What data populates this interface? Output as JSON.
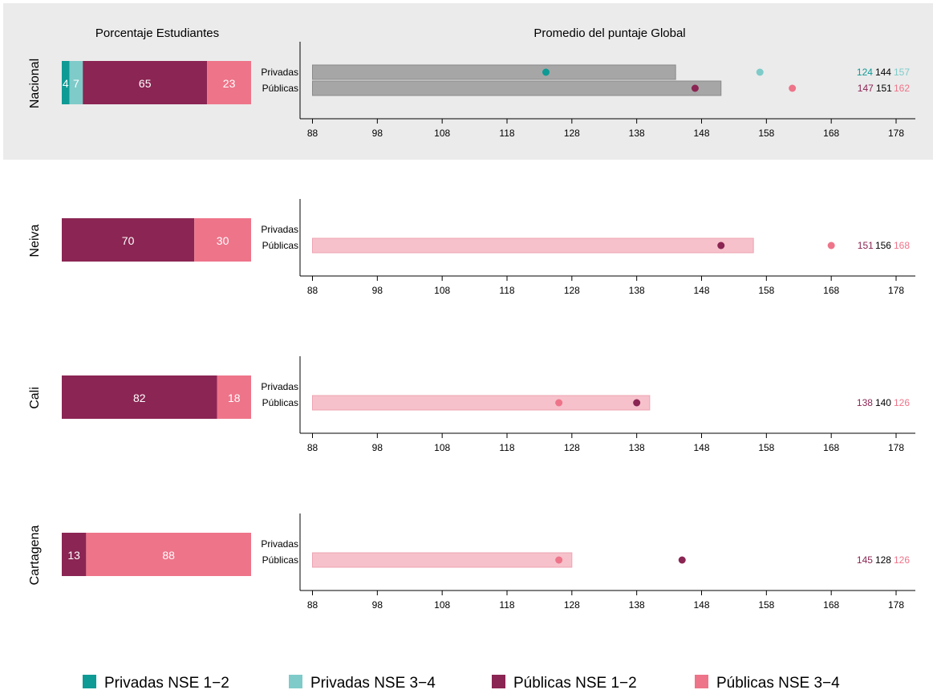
{
  "colors": {
    "privadas_nse_1_2": "#0e9a95",
    "privadas_nse_3_4": "#7ecbc9",
    "publicas_nse_1_2": "#8b2553",
    "publicas_nse_3_4": "#ee7489",
    "bar_gray": "#a6a6a6",
    "bar_pink": "#f6c1cb",
    "highlight_bg": "#ebebeb"
  },
  "headings": {
    "left": "Porcentaje Estudiantes",
    "right": "Promedio del puntaje Global"
  },
  "legend": [
    {
      "label": "Privadas NSE 1−2",
      "color_key": "privadas_nse_1_2"
    },
    {
      "label": "Privadas NSE 3−4",
      "color_key": "privadas_nse_3_4"
    },
    {
      "label": "Públicas NSE 1−2",
      "color_key": "publicas_nse_1_2"
    },
    {
      "label": "Públicas NSE 3−4",
      "color_key": "publicas_nse_3_4"
    }
  ],
  "chart_data": {
    "type": "bar",
    "xlim": [
      88,
      178
    ],
    "x_ticks": [
      88,
      98,
      108,
      118,
      128,
      138,
      148,
      158,
      168,
      178
    ],
    "row_labels": [
      "Privadas",
      "Públicas"
    ],
    "panels": [
      {
        "name": "Nacional",
        "highlight": true,
        "percent_segments": [
          {
            "key": "privadas_nse_1_2",
            "value": 4
          },
          {
            "key": "privadas_nse_3_4",
            "value": 7
          },
          {
            "key": "publicas_nse_1_2",
            "value": 65
          },
          {
            "key": "publicas_nse_3_4",
            "value": 23
          }
        ],
        "rows": [
          {
            "label": "Privadas",
            "bar": 144,
            "bar_color_key": "bar_gray",
            "nse12": 124,
            "nse34": 157,
            "nse12_color_key": "privadas_nse_1_2",
            "nse34_color_key": "privadas_nse_3_4"
          },
          {
            "label": "Públicas",
            "bar": 151,
            "bar_color_key": "bar_gray",
            "nse12": 147,
            "nse34": 162,
            "nse12_color_key": "publicas_nse_1_2",
            "nse34_color_key": "publicas_nse_3_4"
          }
        ]
      },
      {
        "name": "Neiva",
        "highlight": false,
        "percent_segments": [
          {
            "key": "publicas_nse_1_2",
            "value": 70
          },
          {
            "key": "publicas_nse_3_4",
            "value": 30
          }
        ],
        "rows": [
          {
            "label": "Públicas",
            "bar": 156,
            "bar_color_key": "bar_pink",
            "nse12": 151,
            "nse34": 168,
            "nse12_color_key": "publicas_nse_1_2",
            "nse34_color_key": "publicas_nse_3_4"
          }
        ]
      },
      {
        "name": "Cali",
        "highlight": false,
        "percent_segments": [
          {
            "key": "publicas_nse_1_2",
            "value": 82
          },
          {
            "key": "publicas_nse_3_4",
            "value": 18
          }
        ],
        "rows": [
          {
            "label": "Públicas",
            "bar": 140,
            "bar_color_key": "bar_pink",
            "nse12": 138,
            "nse34": 126,
            "nse12_color_key": "publicas_nse_1_2",
            "nse34_color_key": "publicas_nse_3_4"
          }
        ]
      },
      {
        "name": "Cartagena",
        "highlight": false,
        "percent_segments": [
          {
            "key": "publicas_nse_1_2",
            "value": 13
          },
          {
            "key": "publicas_nse_3_4",
            "value": 88
          }
        ],
        "rows": [
          {
            "label": "Públicas",
            "bar": 128,
            "bar_color_key": "bar_pink",
            "nse12": 145,
            "nse34": 126,
            "nse12_color_key": "publicas_nse_1_2",
            "nse34_color_key": "publicas_nse_3_4"
          }
        ]
      }
    ]
  }
}
